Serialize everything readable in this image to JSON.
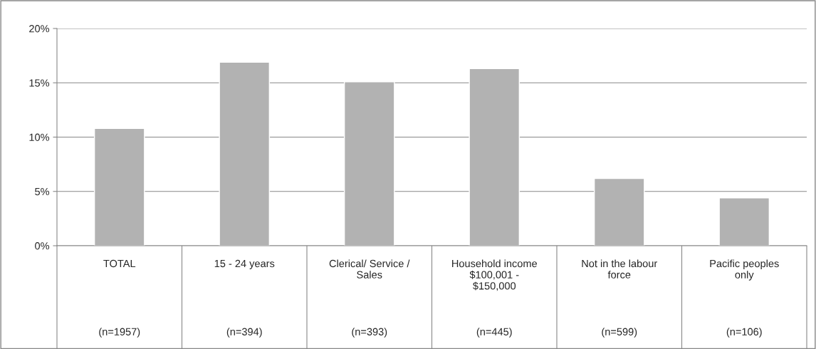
{
  "chart_data": {
    "type": "bar",
    "categories": [
      "TOTAL",
      "15 - 24 years",
      "Clerical/ Service /\nSales",
      "Household income\n$100,001 -\n$150,000",
      "Not in the labour\nforce",
      "Pacific peoples\nonly"
    ],
    "values": [
      10.8,
      16.9,
      15.1,
      16.3,
      6.2,
      4.4
    ],
    "color": "#b2b2b2",
    "ylim": [
      0,
      20
    ],
    "yticks": [
      {
        "value": 0,
        "label": "0%"
      },
      {
        "value": 5,
        "label": "5%"
      },
      {
        "value": 10,
        "label": "10%"
      },
      {
        "value": 15,
        "label": "15%"
      },
      {
        "value": 20,
        "label": "20%"
      }
    ],
    "grid": "y",
    "annotations": [
      "(n=1957)",
      "(n=394)",
      "(n=393)",
      "(n=445)",
      "(n=599)",
      "(n=106)"
    ]
  }
}
